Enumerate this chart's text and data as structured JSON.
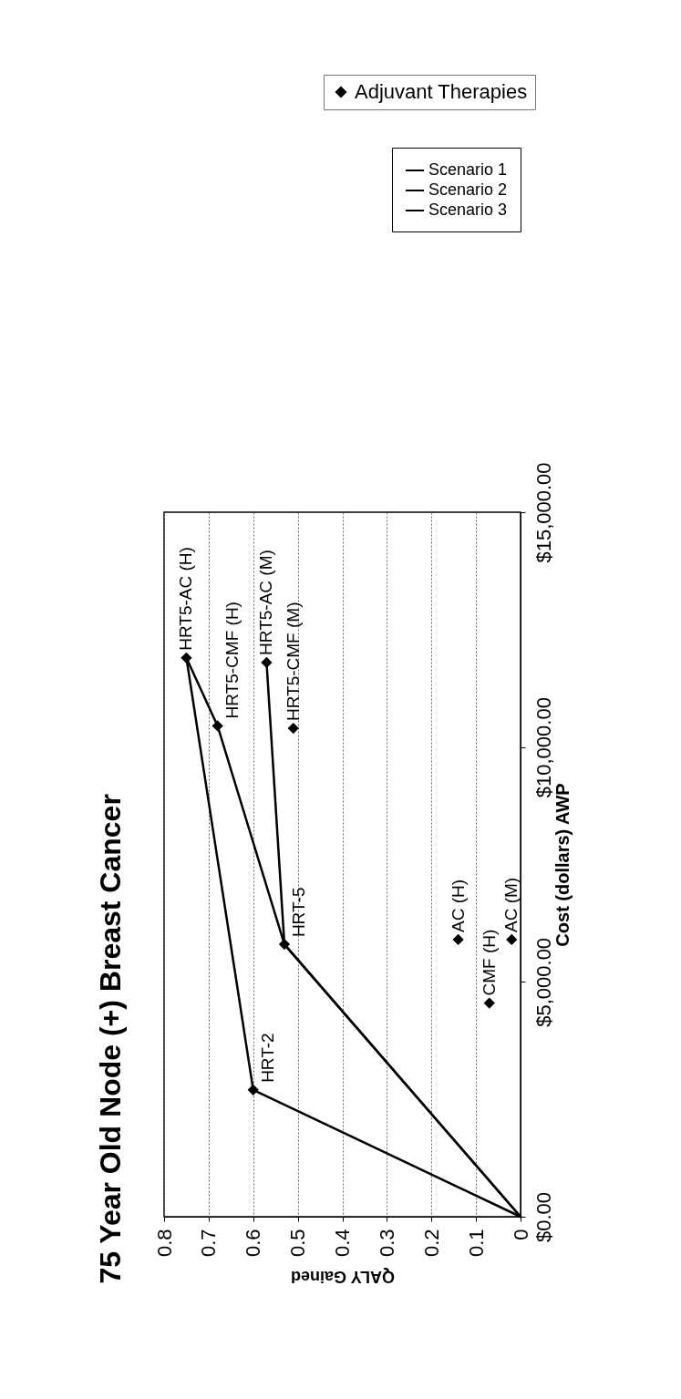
{
  "chart_data": {
    "type": "line",
    "title": "75 Year Old Node (+) Breast Cancer",
    "xlabel": "QALY Gained",
    "ylabel": "Cost (dollars) AWP",
    "series": [
      {
        "name": "Adjuvant Therapies",
        "type": "scatter",
        "marker": "diamond",
        "color": "#000000",
        "x": [
          0.6,
          0.53,
          0.75,
          0.68,
          0.57,
          0.51,
          0.14,
          0.07,
          0.02
        ],
        "values": [
          2700,
          5800,
          11900,
          10450,
          11800,
          10400,
          5900,
          4550,
          5900
        ]
      },
      {
        "name": "Scenario 1",
        "type": "line",
        "color": "#000000",
        "x": [
          0,
          0.6,
          0.75
        ],
        "values": [
          0,
          2700,
          11900
        ]
      },
      {
        "name": "Scenario 2",
        "type": "line",
        "color": "#000000",
        "x": [
          0,
          0.53,
          0.68,
          0.75
        ],
        "values": [
          0,
          5800,
          10450,
          11900
        ]
      },
      {
        "name": "Scenario 3",
        "type": "line",
        "color": "#000000",
        "x": [
          0,
          0.53,
          0.57
        ],
        "values": [
          0,
          5800,
          11800
        ]
      }
    ],
    "annotations": [
      {
        "text": "HRT-2",
        "x": 0.6,
        "y": 2700
      },
      {
        "text": "HRT-5",
        "x": 0.53,
        "y": 5800
      },
      {
        "text": "HRT5-AC (H)",
        "x": 0.75,
        "y": 11900
      },
      {
        "text": "HRT5-CMF (H)",
        "x": 0.68,
        "y": 10450
      },
      {
        "text": "HRT5-AC (M)",
        "x": 0.57,
        "y": 11800
      },
      {
        "text": "HRT5-CMF (M)",
        "x": 0.51,
        "y": 10400
      },
      {
        "text": "AC (H)",
        "x": 0.14,
        "y": 5900
      },
      {
        "text": "CMF (H)",
        "x": 0.07,
        "y": 4550
      },
      {
        "text": "AC (M)",
        "x": 0.02,
        "y": 5900
      }
    ],
    "xlim": [
      0.8,
      0
    ],
    "xticks": [
      0.8,
      0.7,
      0.6,
      0.5,
      0.4,
      0.3,
      0.2,
      0.1,
      0
    ],
    "ylim": [
      0,
      15000
    ],
    "yticks": [
      {
        "value": 0,
        "label": "$0.00"
      },
      {
        "value": 5000,
        "label": "$5,000.00"
      },
      {
        "value": 10000,
        "label": "$10,000.00"
      },
      {
        "value": 15000,
        "label": "$15,000.00"
      }
    ],
    "grid": "x",
    "legend": "top right",
    "marker": "none",
    "line_style": "solid"
  }
}
